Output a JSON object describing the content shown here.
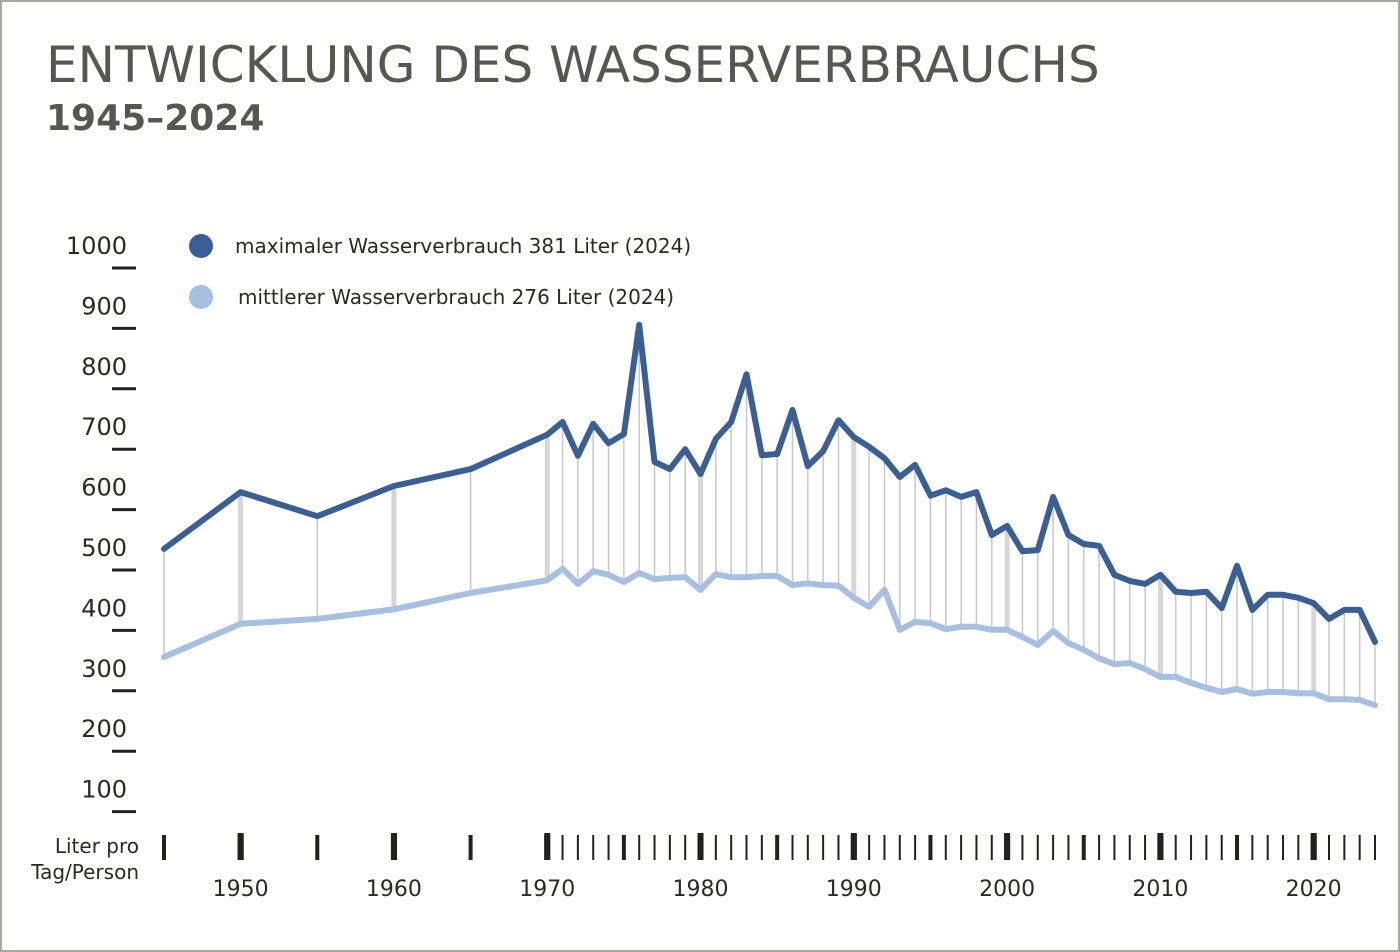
{
  "chart_data": {
    "type": "line",
    "title": "ENTWICKLUNG DES WASSERVERBRAUCHS",
    "subtitle": "1945–2024",
    "y_label": [
      "Liter pro",
      "Tag/Person"
    ],
    "x": [
      1945,
      1950,
      1955,
      1960,
      1965,
      1970,
      1971,
      1972,
      1973,
      1974,
      1975,
      1976,
      1977,
      1978,
      1979,
      1980,
      1981,
      1982,
      1983,
      1984,
      1985,
      1986,
      1987,
      1988,
      1989,
      1990,
      1991,
      1992,
      1993,
      1994,
      1995,
      1996,
      1997,
      1998,
      1999,
      2000,
      2001,
      2002,
      2003,
      2004,
      2005,
      2006,
      2007,
      2008,
      2009,
      2010,
      2011,
      2012,
      2013,
      2014,
      2015,
      2016,
      2017,
      2018,
      2019,
      2020,
      2021,
      2022,
      2023,
      2024
    ],
    "series": [
      {
        "name": "maximaler Wasserverbrauch 381 Liter (2024)",
        "color": "#3a5f96",
        "values": [
          535,
          629,
          589,
          639,
          667,
          724,
          745,
          689,
          742,
          710,
          725,
          906,
          679,
          667,
          700,
          659,
          717,
          745,
          824,
          690,
          692,
          765,
          672,
          697,
          748,
          720,
          704,
          685,
          654,
          674,
          623,
          632,
          621,
          629,
          558,
          573,
          531,
          533,
          621,
          558,
          543,
          540,
          492,
          482,
          477,
          492,
          464,
          462,
          464,
          437,
          507,
          434,
          459,
          459,
          454,
          445,
          419,
          434,
          434,
          381
        ]
      },
      {
        "name": "mittlerer Wasserverbrauch 276 Liter (2024)",
        "color": "#a6bfe3",
        "values": [
          356,
          411,
          419,
          435,
          462,
          483,
          502,
          477,
          498,
          492,
          480,
          495,
          485,
          487,
          488,
          467,
          493,
          488,
          488,
          490,
          490,
          475,
          478,
          475,
          474,
          454,
          439,
          467,
          401,
          414,
          412,
          402,
          406,
          406,
          401,
          401,
          389,
          376,
          399,
          379,
          368,
          354,
          344,
          346,
          336,
          323,
          323,
          313,
          305,
          298,
          303,
          295,
          298,
          298,
          296,
          296,
          286,
          286,
          285,
          276
        ]
      }
    ],
    "xlim": [
      1945,
      2024
    ],
    "xticks": [
      1950,
      1960,
      1970,
      1980,
      1990,
      2000,
      2010,
      2020
    ],
    "ylim": [
      0,
      1000
    ],
    "yticks": [
      100,
      200,
      300,
      400,
      500,
      600,
      700,
      800,
      900,
      1000
    ]
  }
}
